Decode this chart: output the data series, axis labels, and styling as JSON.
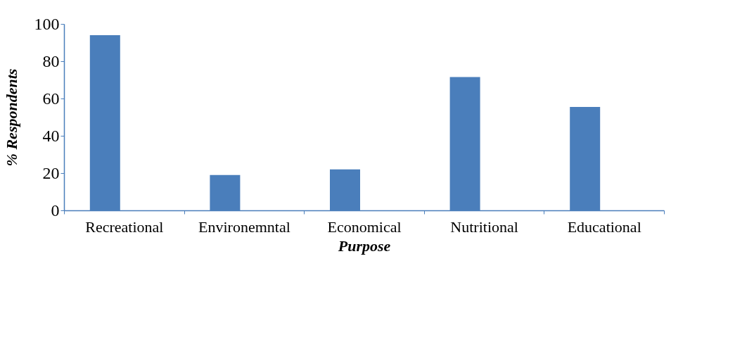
{
  "chart_data": {
    "type": "bar",
    "xlabel": "Purpose",
    "ylabel": "% Respondents",
    "categories": [
      "Recreational",
      "Environemntal",
      "Economical",
      "Nutritional",
      "Educational"
    ],
    "values": [
      94,
      19,
      22,
      71.5,
      55.5
    ],
    "color": "#4a7ebb",
    "ylim": [
      0,
      100
    ],
    "yticks": [
      0,
      20,
      40,
      60,
      80,
      100
    ],
    "grid": false
  }
}
